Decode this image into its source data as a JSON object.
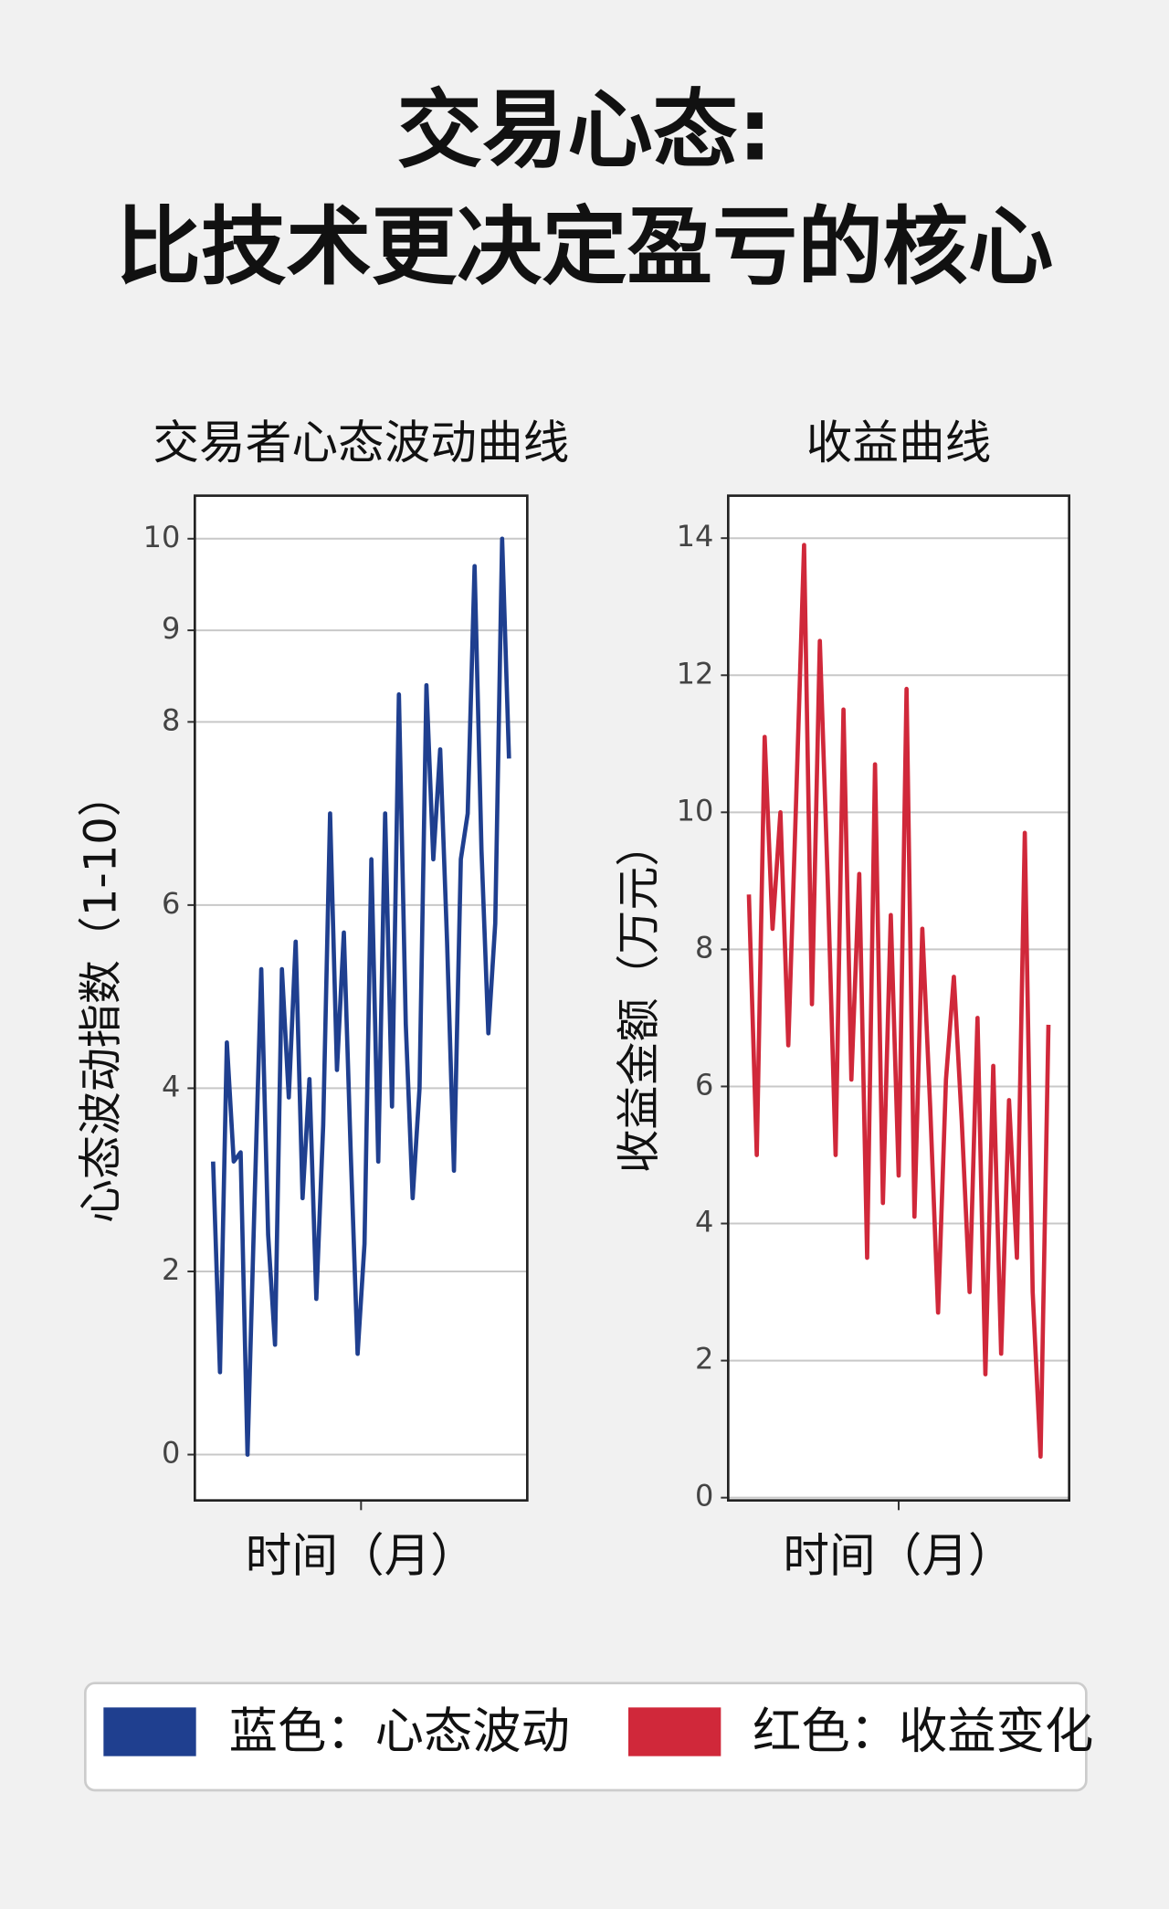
{
  "header": {
    "line1": "交易心态:",
    "line2": "比技术更决定盈亏的核心"
  },
  "chart_data": [
    {
      "type": "line",
      "title": "交易者心态波动曲线",
      "xlabel": "时间（月）",
      "ylabel": "心态波动指数（1-10）",
      "ylim": [
        -0.5,
        10.47
      ],
      "yticks": [
        0,
        2,
        4,
        6,
        8,
        9,
        10
      ],
      "grid": true,
      "series": [
        {
          "name": "蓝色：心态波动",
          "color": "#1f3f8f",
          "values": [
            3.2,
            0.9,
            4.5,
            3.2,
            3.3,
            0,
            2.7,
            5.3,
            2.4,
            1.2,
            5.3,
            3.9,
            5.6,
            2.8,
            4.1,
            1.7,
            3.6,
            7.0,
            4.2,
            5.7,
            3.3,
            1.1,
            2.3,
            6.5,
            3.2,
            7.0,
            3.8,
            8.3,
            4.7,
            2.8,
            4.0,
            8.4,
            6.5,
            7.7,
            5.6,
            3.1,
            6.5,
            7.0,
            9.7,
            6.6,
            4.6,
            5.8,
            10.0,
            7.6
          ]
        }
      ]
    },
    {
      "type": "line",
      "title": "收益曲线",
      "xlabel": "时间（月）",
      "ylabel": "收益金额（万元）",
      "ylim": [
        -0.04,
        14.62
      ],
      "yticks": [
        0,
        2,
        4,
        6,
        8,
        10,
        12,
        14
      ],
      "grid": true,
      "series": [
        {
          "name": "红色：收益变化",
          "color": "#d0283a",
          "values": [
            8.8,
            5.0,
            11.1,
            8.3,
            10.0,
            6.6,
            10.2,
            13.9,
            7.2,
            12.5,
            9.0,
            5.0,
            11.5,
            6.1,
            9.1,
            3.5,
            10.7,
            4.3,
            8.5,
            4.7,
            11.8,
            4.1,
            8.3,
            5.7,
            2.7,
            6.1,
            7.6,
            5.5,
            3.0,
            7.0,
            1.8,
            6.3,
            2.1,
            5.8,
            3.5,
            9.7,
            3.0,
            0.6,
            6.9
          ]
        }
      ]
    }
  ]
}
